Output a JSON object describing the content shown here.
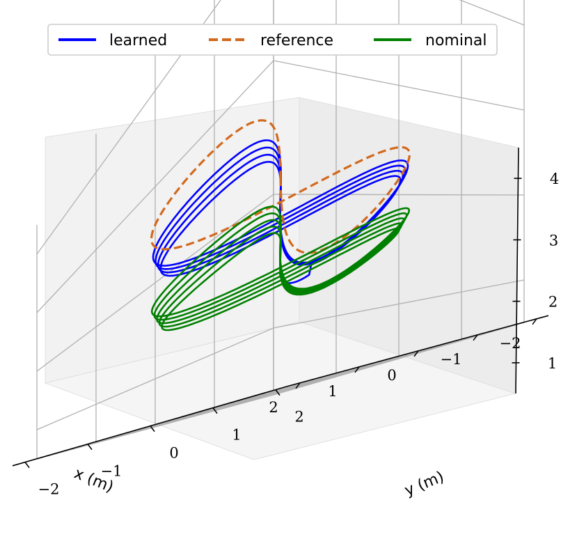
{
  "chart_data": {
    "type": "line",
    "projection": "3d",
    "title": "",
    "legend": {
      "placement": "top-center",
      "entries": [
        "learned",
        "reference",
        "nominal"
      ]
    },
    "axes": {
      "x": {
        "label": "x (m)",
        "range": [
          -2,
          2
        ],
        "ticks": [
          2,
          1,
          0,
          -1,
          -2
        ],
        "tick_labels": [
          "2",
          "1",
          "0",
          "−1",
          "−2"
        ]
      },
      "y": {
        "label": "y (m)",
        "range": [
          -2,
          2
        ],
        "ticks": [
          2,
          1,
          0,
          -1,
          -2
        ],
        "tick_labels": [
          "2",
          "1",
          "0",
          "−1",
          "−2"
        ]
      },
      "z": {
        "label": "",
        "range": [
          0.5,
          4.5
        ],
        "ticks": [
          1,
          2,
          3,
          4
        ],
        "tick_labels": [
          "1",
          "2",
          "3",
          "4"
        ]
      }
    },
    "grid": true,
    "series": [
      {
        "name": "learned",
        "color": "#0000ff",
        "style": "solid",
        "description": "figure-eight trajectory around altitude 3 m with a spiral climb from ~2.2 m",
        "curve": {
          "shape": "figure-eight",
          "x_amplitude": 1.5,
          "y_amplitude": 1.5,
          "z_center": 3.0,
          "z_amplitude": 0.5,
          "start_z": 2.2,
          "laps": 4
        }
      },
      {
        "name": "reference",
        "color": "#d2691e",
        "style": "dashed",
        "curve": {
          "shape": "figure-eight",
          "x_amplitude": 1.5,
          "y_amplitude": 1.6,
          "z_center": 3.3,
          "z_amplitude": 0.5,
          "laps": 1
        }
      },
      {
        "name": "nominal",
        "color": "#008000",
        "style": "solid",
        "curve": {
          "shape": "figure-eight",
          "x_amplitude": 1.5,
          "y_amplitude": 1.5,
          "z_center": 2.3,
          "z_amplitude": 0.6,
          "laps": 5
        }
      }
    ]
  }
}
